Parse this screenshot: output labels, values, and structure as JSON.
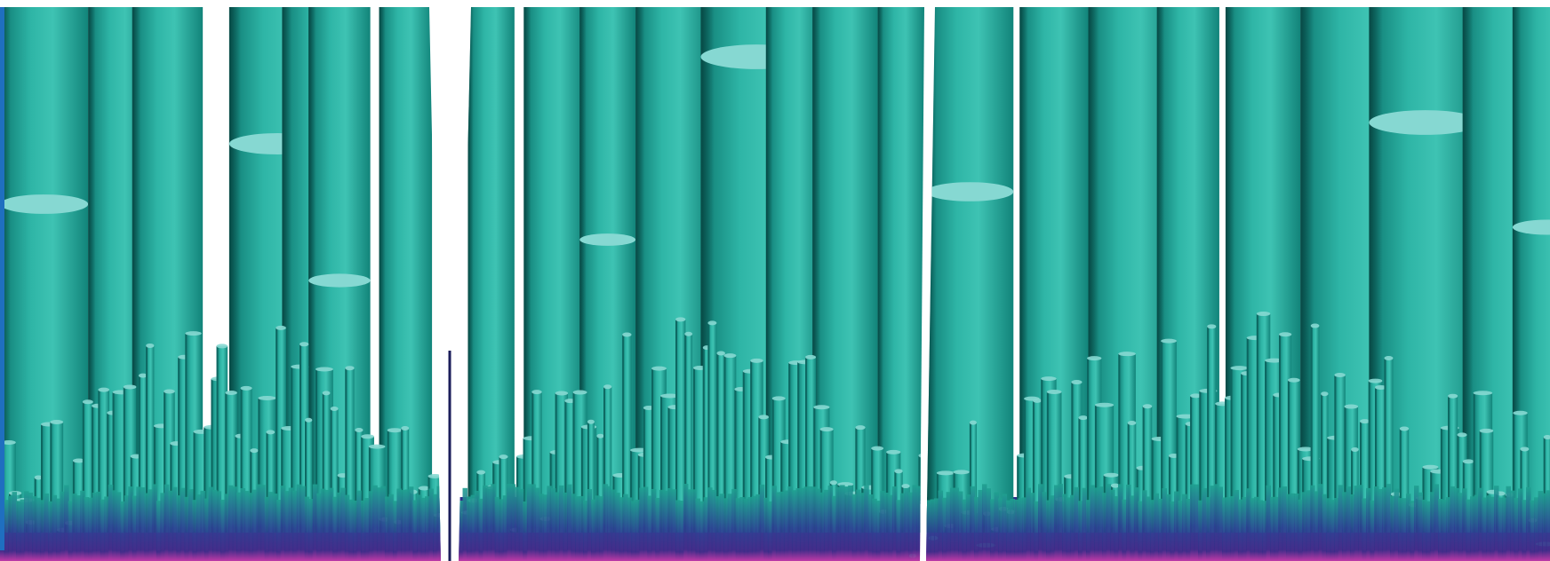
{
  "image": {
    "description_kind": "3d-render",
    "panels": [
      {
        "name": "panel-left"
      },
      {
        "name": "panel-middle"
      },
      {
        "name": "panel-right"
      }
    ]
  },
  "colors": {
    "background": "#ffffff",
    "pillar_light": "#3fc2b2",
    "pillar_mid": "#23a89a",
    "pillar_dark": "#0c6c66",
    "pillar_cap": "#86d8d2",
    "base_indigo": "#2d2f86",
    "base_magenta": "#c03aa8",
    "edge_blue": "#1f6fc0"
  }
}
